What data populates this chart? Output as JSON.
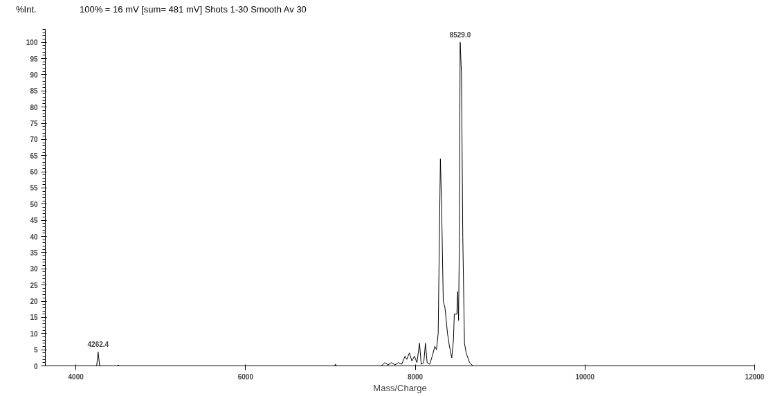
{
  "chart_data": {
    "type": "line",
    "title": "100% = 16 mV [sum= 481 mV]  Shots 1-30 Smooth Av 30",
    "xlabel": "Mass/Charge",
    "ylabel": "%Int.",
    "x": [
      3640,
      4000,
      4245,
      4262.4,
      4280,
      4490,
      4500,
      4510,
      7050,
      7060,
      7070,
      7600,
      7640,
      7680,
      7720,
      7760,
      7800,
      7840,
      7880,
      7900,
      7930,
      7960,
      7990,
      8020,
      8050,
      8070,
      8100,
      8120,
      8140,
      8170,
      8200,
      8230,
      8250,
      8270,
      8296,
      8310,
      8330,
      8350,
      8380,
      8400,
      8430,
      8450,
      8460,
      8490,
      8500,
      8510,
      8520,
      8529,
      8545,
      8560,
      8580,
      8600,
      8640,
      8680,
      8800,
      12000
    ],
    "series": [
      {
        "color": "#000000",
        "values": [
          0,
          0,
          0,
          4.3,
          0,
          0,
          0.3,
          0,
          0,
          0.5,
          0,
          0,
          1,
          0.3,
          1,
          0.3,
          1,
          0.5,
          3,
          2,
          4,
          1.5,
          3,
          1,
          7,
          0.5,
          1,
          7,
          1,
          0.5,
          3,
          6,
          5,
          10,
          64,
          50,
          20,
          18,
          10,
          6.5,
          2.5,
          8,
          16,
          16,
          23,
          14,
          40,
          100,
          90,
          40,
          7,
          4,
          1,
          0,
          0,
          0
        ]
      }
    ],
    "xlim": [
      3640,
      12000
    ],
    "ylim": [
      0,
      104
    ],
    "xticks": [
      4000,
      6000,
      8000,
      10000,
      12000
    ],
    "yticks": [
      0,
      5,
      10,
      15,
      20,
      25,
      30,
      35,
      40,
      45,
      50,
      55,
      60,
      65,
      70,
      75,
      80,
      85,
      90,
      95,
      100
    ],
    "annotations": [
      {
        "text": "4262.4",
        "x": 4262.4,
        "y": 4.3
      },
      {
        "text": "8529.0",
        "x": 8529,
        "y": 100
      }
    ],
    "grid": false,
    "marker": "none",
    "line_style": "solid"
  }
}
